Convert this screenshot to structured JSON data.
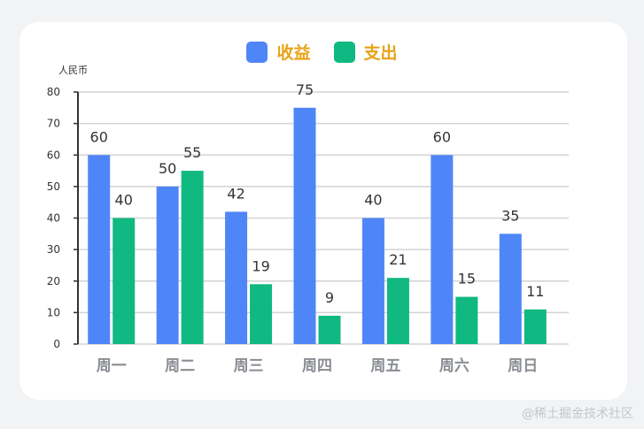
{
  "chart_data": {
    "type": "bar",
    "categories": [
      "周一",
      "周二",
      "周三",
      "周四",
      "周五",
      "周六",
      "周日"
    ],
    "series": [
      {
        "name": "收益",
        "values": [
          60,
          50,
          42,
          75,
          40,
          60,
          35
        ],
        "color": "#4f86f7"
      },
      {
        "name": "支出",
        "values": [
          40,
          55,
          19,
          9,
          21,
          15,
          11
        ],
        "color": "#10b981"
      }
    ],
    "ylabel": "人民币",
    "ylim": [
      0,
      80
    ],
    "yticks": [
      0,
      10,
      20,
      30,
      40,
      50,
      60,
      70,
      80
    ],
    "grid": true,
    "legend_position": "top-center",
    "legend_text_color": "#e8a317"
  },
  "watermark": "@稀土掘金技术社区"
}
